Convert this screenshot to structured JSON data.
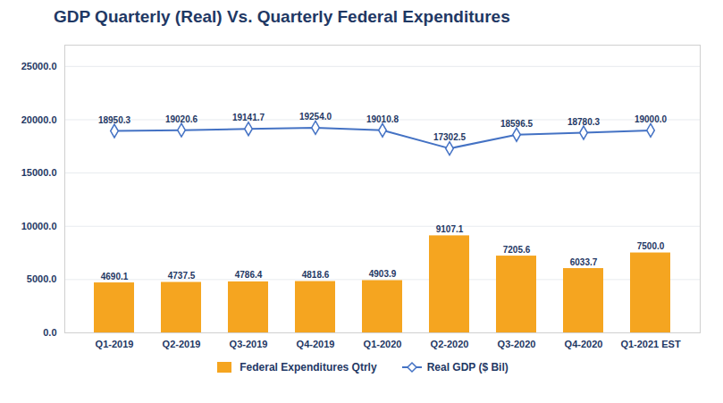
{
  "chart_data": {
    "type": "bar",
    "title": "GDP Quarterly (Real) Vs. Quarterly Federal Expenditures",
    "categories": [
      "Q1-2019",
      "Q2-2019",
      "Q3-2019",
      "Q4-2019",
      "Q1-2020",
      "Q2-2020",
      "Q3-2020",
      "Q4-2020",
      "Q1-2021 EST"
    ],
    "series": [
      {
        "name": "Federal Expenditures Qtrly",
        "type": "bar",
        "color": "#F5A520",
        "values": [
          4690.1,
          4737.5,
          4786.4,
          4818.6,
          4903.9,
          9107.1,
          7205.6,
          6033.7,
          7500.0
        ],
        "value_labels": [
          "4690.1",
          "4737.5",
          "4786.4",
          "4818.6",
          "4903.9",
          "9107.1",
          "7205.6",
          "6033.7",
          "7500.0"
        ]
      },
      {
        "name": "Real GDP ($ Bil)",
        "type": "line",
        "color": "#4472C4",
        "marker": "diamond",
        "values": [
          18950.3,
          19020.6,
          19141.7,
          19254.0,
          19010.8,
          17302.5,
          18596.5,
          18780.3,
          19000.0
        ],
        "value_labels": [
          "18950.3",
          "19020.6",
          "19141.7",
          "19254.0",
          "19010.8",
          "17302.5",
          "18596.5",
          "18780.3",
          "19000.0"
        ]
      }
    ],
    "ylim": [
      0,
      27000
    ],
    "yticks": [
      {
        "value": 0,
        "label": "0.0"
      },
      {
        "value": 5000,
        "label": "5000.0"
      },
      {
        "value": 10000,
        "label": "10000.0"
      },
      {
        "value": 15000,
        "label": "15000.0"
      },
      {
        "value": 20000,
        "label": "20000.0"
      },
      {
        "value": 25000,
        "label": "25000.0"
      }
    ],
    "grid": true,
    "legend": "bottom",
    "data_labels": true
  }
}
